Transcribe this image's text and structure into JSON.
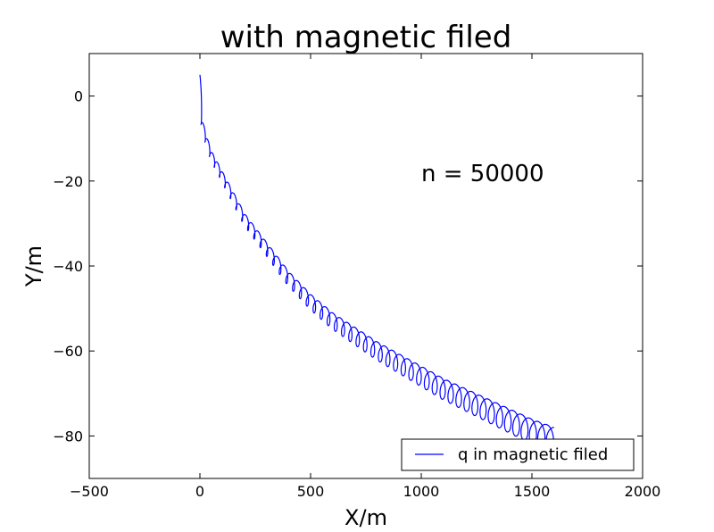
{
  "chart_data": {
    "type": "line",
    "title": "with magnetic filed",
    "xlabel": "X/m",
    "ylabel": "Y/m",
    "xlim": [
      -500,
      2000
    ],
    "ylim": [
      -90,
      10
    ],
    "xticks": [
      -500,
      0,
      500,
      1000,
      1500,
      2000
    ],
    "yticks": [
      0,
      -20,
      -40,
      -60,
      -80
    ],
    "annotation": "n = 50000",
    "legend": {
      "placement": "lower-right",
      "entries": [
        "q in magnetic filed"
      ]
    },
    "grid": false,
    "series": [
      {
        "name": "q in magnetic filed",
        "color": "#0000ff",
        "trend": {
          "x": [
            0,
            5,
            20,
            50,
            100,
            150,
            200,
            300,
            400,
            500,
            600,
            700,
            800,
            900,
            1000,
            1100,
            1200,
            1300,
            1400,
            1500,
            1600
          ],
          "y": [
            0,
            -5,
            -9,
            -14,
            -19,
            -24,
            -29,
            -36,
            -43,
            -48.5,
            -53,
            -56.5,
            -60,
            -63,
            -66,
            -69,
            -71.5,
            -74,
            -76.5,
            -79,
            -81
          ]
        },
        "oscillation_cycles": 50,
        "oscillation_amplitude_range": [
          1,
          3
        ]
      }
    ]
  }
}
